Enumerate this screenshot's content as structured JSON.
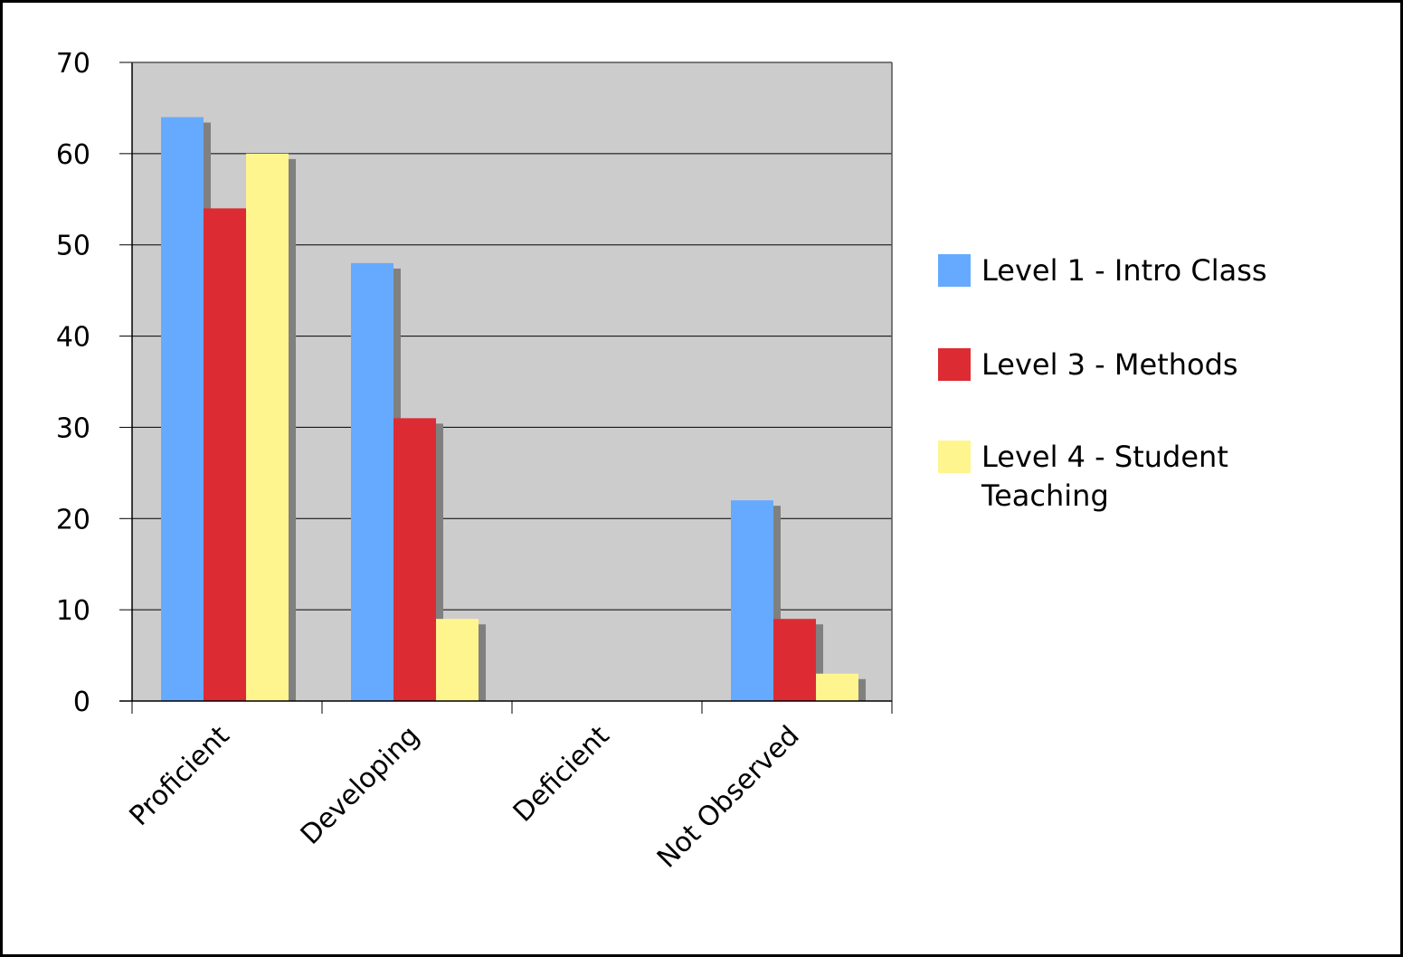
{
  "chart_data": {
    "type": "bar",
    "categories": [
      "Proficient",
      "Developing",
      "Deficient",
      "Not Observed"
    ],
    "series": [
      {
        "name": "Level 1 - Intro Class",
        "values": [
          64,
          48,
          0,
          22
        ],
        "color": "#66aaff"
      },
      {
        "name": "Level 3 - Methods",
        "values": [
          54,
          31,
          0,
          9
        ],
        "color": "#dd2b33"
      },
      {
        "name": "Level 4 - Student Teaching",
        "values": [
          60,
          9,
          0,
          3
        ],
        "color": "#fff58f"
      }
    ],
    "ylim": [
      0,
      70
    ],
    "y_ticks": [
      0,
      10,
      20,
      30,
      40,
      50,
      60,
      70
    ],
    "grid": true,
    "legend_position": "right",
    "plot_background": "#cccccc",
    "shadow_color": "#808080",
    "legend_lines": [
      [
        "Level 1 - Intro Class"
      ],
      [
        "Level 3 - Methods"
      ],
      [
        "Level 4 - Student",
        "Teaching"
      ]
    ]
  }
}
